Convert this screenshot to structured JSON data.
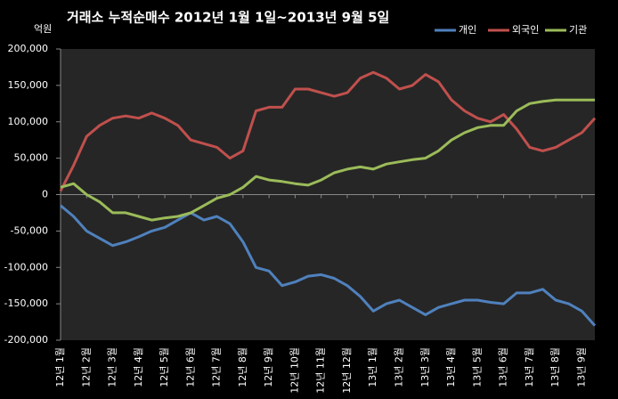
{
  "chart_data": {
    "type": "line",
    "title": "거래소  누적순매수 2012년 1월 1일~2013년 9월 5일",
    "y_unit": "억원",
    "categories": [
      "12년 1월",
      null,
      "12년 2월",
      null,
      "12년 3월",
      null,
      "12년 4월",
      null,
      "12년 5월",
      null,
      "12년 6월",
      null,
      "12년 7월",
      null,
      "12년 8월",
      null,
      "12년 9월",
      null,
      "12년 10월",
      null,
      "12년 11월",
      null,
      "12년 12월",
      null,
      "13년 1월",
      null,
      "13년 2월",
      null,
      "13년 3월",
      null,
      "13년 4월",
      null,
      "13년 5월",
      null,
      "13년 6월",
      null,
      "13년 7월",
      null,
      "13년 8월",
      null,
      "13년 9월",
      null
    ],
    "series": [
      {
        "name": "개인",
        "color": "#4f81bd",
        "values": [
          -15000,
          -30000,
          -50000,
          -60000,
          -70000,
          -65000,
          -58000,
          -50000,
          -45000,
          -35000,
          -25000,
          -35000,
          -30000,
          -40000,
          -65000,
          -100000,
          -105000,
          -125000,
          -120000,
          -112000,
          -110000,
          -115000,
          -125000,
          -140000,
          -160000,
          -150000,
          -145000,
          -155000,
          -165000,
          -155000,
          -150000,
          -145000,
          -145000,
          -148000,
          -150000,
          -135000,
          -135000,
          -130000,
          -145000,
          -150000,
          -160000,
          -180000
        ]
      },
      {
        "name": "외국인",
        "color": "#c0504d",
        "values": [
          5000,
          40000,
          80000,
          95000,
          105000,
          108000,
          105000,
          112000,
          105000,
          95000,
          75000,
          70000,
          65000,
          50000,
          60000,
          115000,
          120000,
          120000,
          145000,
          145000,
          140000,
          135000,
          140000,
          160000,
          168000,
          160000,
          145000,
          150000,
          165000,
          155000,
          130000,
          115000,
          105000,
          100000,
          110000,
          90000,
          65000,
          60000,
          65000,
          75000,
          85000,
          105000
        ]
      },
      {
        "name": "기관",
        "color": "#9bbb59",
        "values": [
          10000,
          15000,
          0,
          -10000,
          -25000,
          -25000,
          -30000,
          -35000,
          -32000,
          -30000,
          -25000,
          -15000,
          -5000,
          0,
          10000,
          25000,
          20000,
          18000,
          15000,
          13000,
          20000,
          30000,
          35000,
          38000,
          35000,
          42000,
          45000,
          48000,
          50000,
          60000,
          75000,
          85000,
          92000,
          95000,
          95000,
          115000,
          125000,
          128000,
          130000,
          130000,
          130000,
          130000
        ]
      }
    ],
    "ylim": [
      -200000,
      200000
    ],
    "yticks": [
      {
        "value": -200000,
        "label": "-200,000"
      },
      {
        "value": -150000,
        "label": "-150,000"
      },
      {
        "value": -100000,
        "label": "-100,000"
      },
      {
        "value": -50000,
        "label": "-50,000"
      },
      0,
      {
        "value": 50000,
        "label": "50,000"
      },
      {
        "value": 100000,
        "label": "100,000"
      },
      {
        "value": 150000,
        "label": "150,000"
      },
      {
        "value": 200000,
        "label": "200,000"
      }
    ],
    "legend": "top-right"
  }
}
